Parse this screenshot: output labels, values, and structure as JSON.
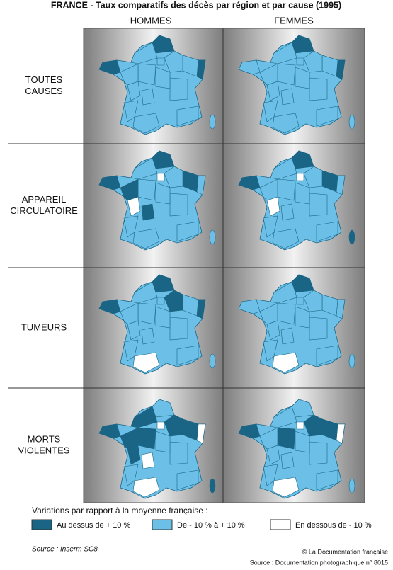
{
  "header": {
    "title": "FRANCE - Taux comparatifs des décès par région et par cause (1995)"
  },
  "columns": [
    "HOMMES",
    "FEMMES"
  ],
  "rows": [
    [
      "TOUTES",
      "CAUSES"
    ],
    [
      "APPAREIL",
      "CIRCULATOIRE"
    ],
    [
      "TUMEURS"
    ],
    [
      "MORTS",
      "VIOLENTES"
    ]
  ],
  "legend": {
    "title": "Variations par rapport à la moyenne française :",
    "items": [
      "Au dessus de + 10 %",
      "De - 10 % à + 10 %",
      "En dessous de - 10 %"
    ]
  },
  "footer": {
    "source": "Source : Inserm SC8",
    "credit": "© La Documentation française",
    "reference": "Source : Documentation photographique n° 8015"
  }
}
